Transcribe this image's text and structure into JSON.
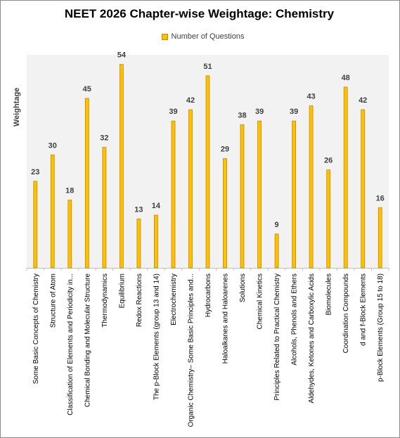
{
  "chart_data": {
    "type": "bar",
    "title": "NEET 2026 Chapter-wise Weightage: Chemistry",
    "ylabel": "Weightage",
    "xlabel": "",
    "legend_position": "top",
    "grid": false,
    "ylim": [
      0,
      56
    ],
    "bar_color": "#ffc000",
    "bar_edge_color": "#c28a00",
    "series": [
      {
        "name": "Number of Questions",
        "values": [
          23,
          30,
          18,
          45,
          32,
          54,
          13,
          14,
          39,
          42,
          51,
          29,
          38,
          39,
          9,
          39,
          43,
          26,
          48,
          42,
          16
        ]
      }
    ],
    "categories": [
      "Some Basic Concepts of Chemistry",
      "Structure of Atom",
      "Classification of Elements and Periodicity in...",
      "Chemical Bonding and Molecular Structure",
      "Thermodynamics",
      "Equilibrium",
      "Redox Reactions",
      "The p-Block Elements (group 13 and 14)",
      "Electrochemistry",
      "Organic Chemistry– Some Basic Principles and...",
      "Hydrocarbons",
      "Haloalkanes and Haloarenes",
      "Solutions",
      "Chemical Kinetics",
      "Principles Related to Practical Chemistry",
      "Alcohols, Phenols and Ethers",
      "Aldehydes, Ketones and Carboxylic Acids",
      "Biomolecules",
      "Coordination Compounds",
      "d and f-Block Elements",
      "p-Block Elements (Group 15 to 18)"
    ]
  }
}
